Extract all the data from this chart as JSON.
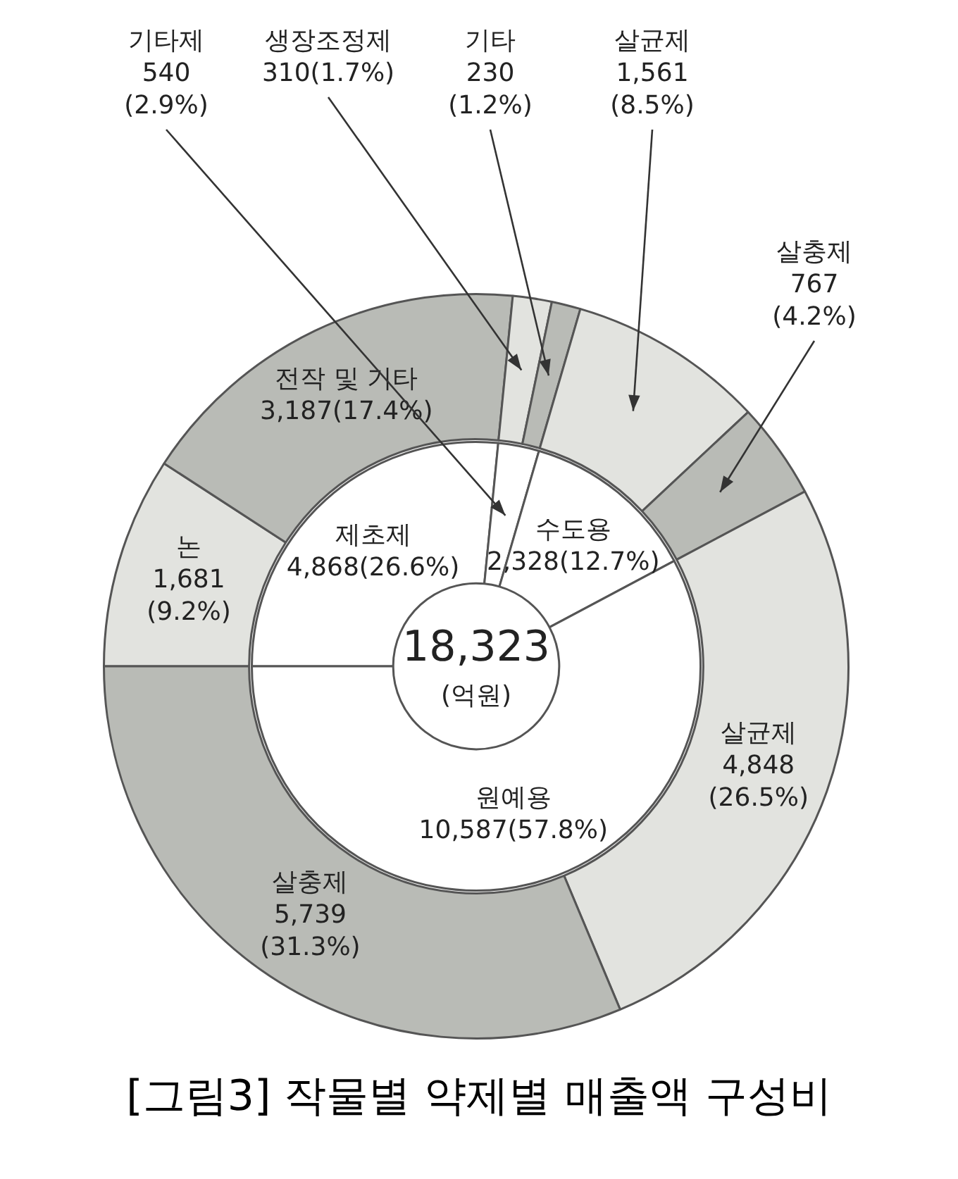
{
  "chart_data": [
    {
      "type": "donut",
      "title": "[그림3] 작물별 약제별 매출액 구성비",
      "categories": [
        "논",
        "전작 및 기타",
        "생장조정제",
        "기타",
        "살균제",
        "살충제",
        "살균제",
        "살충제"
      ],
      "values": [
        1681,
        3187,
        310,
        230,
        1561,
        767,
        4848,
        5739
      ],
      "colors": [
        "#e2e3df",
        "#b9bbb6",
        "#e2e3df",
        "#b9bbb6",
        "#e2e3df",
        "#b9bbb6",
        "#e2e3df",
        "#b9bbb6"
      ],
      "value_labels": [
        "1,681 (9.2%)",
        "3,187(17.4%)",
        "310(1.7%)",
        "230 (1.2%)",
        "1,561 (8.5%)",
        "767 (4.2%)",
        "4,848 (26.5%)",
        "5,739 (31.3%)"
      ]
    },
    {
      "type": "donut",
      "annotations": [
        "18,323 (억원)"
      ],
      "categories": [
        "제초제",
        "기타제",
        "수도용",
        "원예용"
      ],
      "values": [
        4868,
        540,
        2328,
        10587
      ],
      "colors": [
        "#ffffff",
        "#ffffff",
        "#ffffff",
        "#ffffff"
      ],
      "value_labels": [
        "4,868(26.6%)",
        "540 (2.9%)",
        "2,328(12.7%)",
        "10,587(57.8%)"
      ]
    }
  ]
}
